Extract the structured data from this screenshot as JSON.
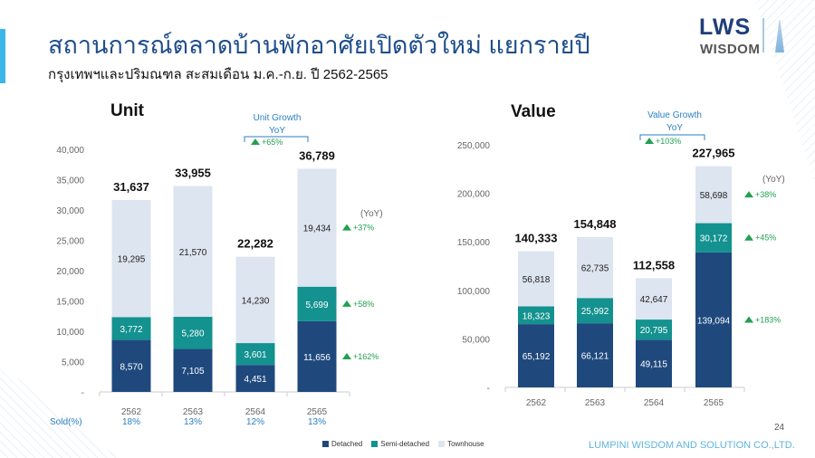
{
  "header": {
    "title": "สถานการณ์ตลาดบ้านพักอาศัยเปิดตัวใหม่ แยกรายปี",
    "subtitle": "กรุงเทพฯและปริมณฑล สะสมเดือน ม.ค.-ก.ย. ปี 2562-2565"
  },
  "logo": {
    "line1": "LWS",
    "line2": "WISDOM"
  },
  "colors": {
    "detached": "#1f497d",
    "semi": "#13928f",
    "townhouse": "#dce5f0",
    "growth": "#22a050",
    "accent": "#3bb6e8"
  },
  "legend": [
    "Detached",
    "Semi-detached",
    "Townhouse"
  ],
  "sold": {
    "label": "Sold(%)",
    "values": [
      "18%",
      "13%",
      "12%",
      "13%"
    ]
  },
  "footer": {
    "company": "LUMPINI WISDOM AND SOLUTION CO.,LTD.",
    "page": "24"
  },
  "chart_data": [
    {
      "type": "bar",
      "stacked": true,
      "title": "Unit",
      "categories": [
        "2562",
        "2563",
        "2564",
        "2565"
      ],
      "series": [
        {
          "name": "Detached",
          "values": [
            8570,
            7105,
            4451,
            11656
          ],
          "labels": [
            "8,570",
            "7,105",
            "4,451",
            "11,656"
          ]
        },
        {
          "name": "Semi-detached",
          "values": [
            3772,
            5280,
            3601,
            5699
          ],
          "labels": [
            "3,772",
            "5,280",
            "3,601",
            "5,699"
          ]
        },
        {
          "name": "Townhouse",
          "values": [
            19295,
            21570,
            14230,
            19434
          ],
          "labels": [
            "19,295",
            "21,570",
            "14,230",
            "19,434"
          ]
        }
      ],
      "totals": [
        "31,637",
        "33,955",
        "22,282",
        "36,789"
      ],
      "ylim": [
        0,
        40000
      ],
      "yticks": [
        "-",
        "5,000",
        "10,000",
        "15,000",
        "20,000",
        "25,000",
        "30,000",
        "35,000",
        "40,000"
      ],
      "growth_header": [
        "Unit Growth",
        "YoY"
      ],
      "growth_total": "+65%",
      "yoy_label": "(YoY)",
      "growth_series": [
        "+162%",
        "+58%",
        "+37%"
      ]
    },
    {
      "type": "bar",
      "stacked": true,
      "title": "Value",
      "categories": [
        "2562",
        "2563",
        "2564",
        "2565"
      ],
      "series": [
        {
          "name": "Detached",
          "values": [
            65192,
            66121,
            49115,
            139094
          ],
          "labels": [
            "65,192",
            "66,121",
            "49,115",
            "139,094"
          ]
        },
        {
          "name": "Semi-detached",
          "values": [
            18323,
            25992,
            20795,
            30172
          ],
          "labels": [
            "18,323",
            "25,992",
            "20,795",
            "30,172"
          ]
        },
        {
          "name": "Townhouse",
          "values": [
            56818,
            62735,
            42647,
            58698
          ],
          "labels": [
            "56,818",
            "62,735",
            "42,647",
            "58,698"
          ]
        }
      ],
      "totals": [
        "140,333",
        "154,848",
        "112,558",
        "227,965"
      ],
      "ylim": [
        0,
        250000
      ],
      "yticks": [
        "-",
        "50,000",
        "100,000",
        "150,000",
        "200,000",
        "250,000"
      ],
      "growth_header": [
        "Value Growth",
        "YoY"
      ],
      "growth_total": "+103%",
      "yoy_label": "(YoY)",
      "growth_series": [
        "+183%",
        "+45%",
        "+38%"
      ]
    }
  ]
}
